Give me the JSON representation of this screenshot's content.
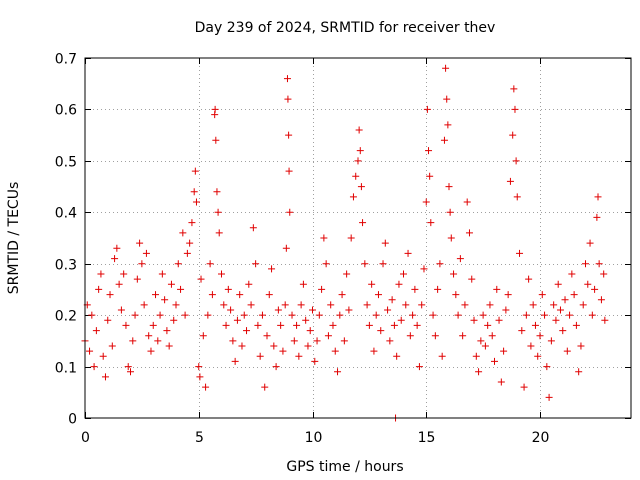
{
  "colors": {
    "points": "#e00000",
    "background": "#ffffff",
    "axes": "#000000"
  },
  "chart_data": {
    "type": "scatter",
    "title": "Day 239 of 2024, SRMTID for receiver thev",
    "xlabel": "GPS time / hours",
    "ylabel": "SRMTID / TECUs",
    "xlim": [
      0,
      24
    ],
    "ylim": [
      0,
      0.7
    ],
    "xticks": [
      0,
      5,
      10,
      15,
      20
    ],
    "xtick_labels": [
      "0",
      "5",
      "10",
      "15",
      "20"
    ],
    "yticks": [
      0,
      0.1,
      0.2,
      0.3,
      0.4,
      0.5,
      0.6,
      0.7
    ],
    "ytick_labels": [
      "0",
      "0.1",
      "0.2",
      "0.3",
      "0.4",
      "0.5",
      "0.6",
      "0.7"
    ],
    "grid": true,
    "marker": "+",
    "series": [
      {
        "name": "SRMTID",
        "points": [
          [
            0.0,
            0.15
          ],
          [
            0.1,
            0.22
          ],
          [
            0.2,
            0.13
          ],
          [
            0.3,
            0.2
          ],
          [
            0.4,
            0.1
          ],
          [
            0.5,
            0.17
          ],
          [
            0.6,
            0.25
          ],
          [
            0.7,
            0.28
          ],
          [
            0.8,
            0.12
          ],
          [
            0.9,
            0.08
          ],
          [
            1.0,
            0.19
          ],
          [
            1.1,
            0.24
          ],
          [
            1.2,
            0.14
          ],
          [
            1.3,
            0.31
          ],
          [
            1.4,
            0.33
          ],
          [
            1.5,
            0.26
          ],
          [
            1.6,
            0.21
          ],
          [
            1.7,
            0.28
          ],
          [
            1.8,
            0.18
          ],
          [
            1.9,
            0.1
          ],
          [
            2.0,
            0.09
          ],
          [
            2.1,
            0.15
          ],
          [
            2.2,
            0.2
          ],
          [
            2.3,
            0.27
          ],
          [
            2.4,
            0.34
          ],
          [
            2.5,
            0.3
          ],
          [
            2.6,
            0.22
          ],
          [
            2.7,
            0.32
          ],
          [
            2.8,
            0.16
          ],
          [
            2.9,
            0.13
          ],
          [
            3.0,
            0.18
          ],
          [
            3.1,
            0.24
          ],
          [
            3.2,
            0.15
          ],
          [
            3.3,
            0.2
          ],
          [
            3.4,
            0.28
          ],
          [
            3.5,
            0.23
          ],
          [
            3.6,
            0.17
          ],
          [
            3.7,
            0.14
          ],
          [
            3.8,
            0.26
          ],
          [
            3.9,
            0.19
          ],
          [
            4.0,
            0.22
          ],
          [
            4.1,
            0.3
          ],
          [
            4.2,
            0.25
          ],
          [
            4.3,
            0.36
          ],
          [
            4.4,
            0.2
          ],
          [
            4.5,
            0.32
          ],
          [
            4.6,
            0.34
          ],
          [
            4.7,
            0.38
          ],
          [
            4.8,
            0.44
          ],
          [
            4.85,
            0.48
          ],
          [
            4.9,
            0.42
          ],
          [
            5.0,
            0.1
          ],
          [
            5.05,
            0.08
          ],
          [
            5.1,
            0.27
          ],
          [
            5.2,
            0.16
          ],
          [
            5.3,
            0.06
          ],
          [
            5.4,
            0.2
          ],
          [
            5.5,
            0.3
          ],
          [
            5.6,
            0.24
          ],
          [
            5.7,
            0.59
          ],
          [
            5.72,
            0.6
          ],
          [
            5.75,
            0.54
          ],
          [
            5.8,
            0.44
          ],
          [
            5.85,
            0.4
          ],
          [
            5.9,
            0.36
          ],
          [
            6.0,
            0.28
          ],
          [
            6.1,
            0.22
          ],
          [
            6.2,
            0.18
          ],
          [
            6.3,
            0.25
          ],
          [
            6.4,
            0.21
          ],
          [
            6.5,
            0.15
          ],
          [
            6.6,
            0.11
          ],
          [
            6.7,
            0.19
          ],
          [
            6.8,
            0.24
          ],
          [
            6.9,
            0.14
          ],
          [
            7.0,
            0.2
          ],
          [
            7.1,
            0.17
          ],
          [
            7.2,
            0.26
          ],
          [
            7.3,
            0.22
          ],
          [
            7.4,
            0.37
          ],
          [
            7.5,
            0.3
          ],
          [
            7.6,
            0.18
          ],
          [
            7.7,
            0.12
          ],
          [
            7.8,
            0.2
          ],
          [
            7.9,
            0.06
          ],
          [
            8.0,
            0.16
          ],
          [
            8.1,
            0.24
          ],
          [
            8.2,
            0.29
          ],
          [
            8.3,
            0.14
          ],
          [
            8.4,
            0.1
          ],
          [
            8.5,
            0.21
          ],
          [
            8.6,
            0.18
          ],
          [
            8.7,
            0.13
          ],
          [
            8.8,
            0.22
          ],
          [
            8.85,
            0.33
          ],
          [
            8.9,
            0.66
          ],
          [
            8.92,
            0.62
          ],
          [
            8.95,
            0.55
          ],
          [
            8.97,
            0.48
          ],
          [
            9.0,
            0.4
          ],
          [
            9.1,
            0.2
          ],
          [
            9.2,
            0.15
          ],
          [
            9.3,
            0.18
          ],
          [
            9.4,
            0.12
          ],
          [
            9.5,
            0.22
          ],
          [
            9.6,
            0.26
          ],
          [
            9.7,
            0.19
          ],
          [
            9.8,
            0.14
          ],
          [
            9.9,
            0.17
          ],
          [
            10.0,
            0.21
          ],
          [
            10.1,
            0.11
          ],
          [
            10.2,
            0.15
          ],
          [
            10.3,
            0.2
          ],
          [
            10.4,
            0.25
          ],
          [
            10.5,
            0.35
          ],
          [
            10.6,
            0.3
          ],
          [
            10.7,
            0.16
          ],
          [
            10.8,
            0.22
          ],
          [
            10.9,
            0.18
          ],
          [
            11.0,
            0.13
          ],
          [
            11.1,
            0.09
          ],
          [
            11.2,
            0.2
          ],
          [
            11.3,
            0.24
          ],
          [
            11.4,
            0.15
          ],
          [
            11.5,
            0.28
          ],
          [
            11.6,
            0.21
          ],
          [
            11.7,
            0.35
          ],
          [
            11.8,
            0.43
          ],
          [
            11.9,
            0.47
          ],
          [
            12.0,
            0.5
          ],
          [
            12.05,
            0.56
          ],
          [
            12.1,
            0.52
          ],
          [
            12.15,
            0.45
          ],
          [
            12.2,
            0.38
          ],
          [
            12.3,
            0.3
          ],
          [
            12.4,
            0.22
          ],
          [
            12.5,
            0.18
          ],
          [
            12.6,
            0.26
          ],
          [
            12.7,
            0.13
          ],
          [
            12.8,
            0.2
          ],
          [
            12.9,
            0.24
          ],
          [
            13.0,
            0.17
          ],
          [
            13.1,
            0.3
          ],
          [
            13.2,
            0.34
          ],
          [
            13.3,
            0.21
          ],
          [
            13.4,
            0.15
          ],
          [
            13.5,
            0.23
          ],
          [
            13.6,
            0.18
          ],
          [
            13.65,
            0.0
          ],
          [
            13.7,
            0.12
          ],
          [
            13.8,
            0.26
          ],
          [
            13.9,
            0.19
          ],
          [
            14.0,
            0.28
          ],
          [
            14.1,
            0.22
          ],
          [
            14.2,
            0.32
          ],
          [
            14.3,
            0.16
          ],
          [
            14.4,
            0.2
          ],
          [
            14.5,
            0.25
          ],
          [
            14.6,
            0.18
          ],
          [
            14.7,
            0.1
          ],
          [
            14.8,
            0.22
          ],
          [
            14.9,
            0.29
          ],
          [
            15.0,
            0.42
          ],
          [
            15.05,
            0.6
          ],
          [
            15.1,
            0.52
          ],
          [
            15.15,
            0.47
          ],
          [
            15.2,
            0.38
          ],
          [
            15.3,
            0.2
          ],
          [
            15.4,
            0.16
          ],
          [
            15.5,
            0.25
          ],
          [
            15.6,
            0.3
          ],
          [
            15.7,
            0.12
          ],
          [
            15.8,
            0.54
          ],
          [
            15.85,
            0.68
          ],
          [
            15.9,
            0.62
          ],
          [
            15.95,
            0.57
          ],
          [
            16.0,
            0.45
          ],
          [
            16.05,
            0.4
          ],
          [
            16.1,
            0.35
          ],
          [
            16.2,
            0.28
          ],
          [
            16.3,
            0.24
          ],
          [
            16.4,
            0.2
          ],
          [
            16.5,
            0.31
          ],
          [
            16.6,
            0.16
          ],
          [
            16.7,
            0.22
          ],
          [
            16.8,
            0.42
          ],
          [
            16.9,
            0.36
          ],
          [
            17.0,
            0.27
          ],
          [
            17.1,
            0.19
          ],
          [
            17.2,
            0.12
          ],
          [
            17.3,
            0.09
          ],
          [
            17.4,
            0.15
          ],
          [
            17.5,
            0.2
          ],
          [
            17.6,
            0.14
          ],
          [
            17.7,
            0.18
          ],
          [
            17.8,
            0.22
          ],
          [
            17.9,
            0.16
          ],
          [
            18.0,
            0.11
          ],
          [
            18.1,
            0.25
          ],
          [
            18.2,
            0.19
          ],
          [
            18.3,
            0.07
          ],
          [
            18.4,
            0.13
          ],
          [
            18.5,
            0.21
          ],
          [
            18.6,
            0.24
          ],
          [
            18.7,
            0.46
          ],
          [
            18.8,
            0.55
          ],
          [
            18.85,
            0.64
          ],
          [
            18.9,
            0.6
          ],
          [
            18.95,
            0.5
          ],
          [
            19.0,
            0.43
          ],
          [
            19.1,
            0.32
          ],
          [
            19.2,
            0.17
          ],
          [
            19.3,
            0.06
          ],
          [
            19.4,
            0.2
          ],
          [
            19.5,
            0.27
          ],
          [
            19.6,
            0.14
          ],
          [
            19.7,
            0.22
          ],
          [
            19.8,
            0.18
          ],
          [
            19.9,
            0.12
          ],
          [
            20.0,
            0.16
          ],
          [
            20.1,
            0.24
          ],
          [
            20.2,
            0.2
          ],
          [
            20.3,
            0.1
          ],
          [
            20.4,
            0.04
          ],
          [
            20.5,
            0.15
          ],
          [
            20.6,
            0.22
          ],
          [
            20.7,
            0.19
          ],
          [
            20.8,
            0.26
          ],
          [
            20.9,
            0.21
          ],
          [
            21.0,
            0.17
          ],
          [
            21.1,
            0.23
          ],
          [
            21.2,
            0.13
          ],
          [
            21.3,
            0.2
          ],
          [
            21.4,
            0.28
          ],
          [
            21.5,
            0.24
          ],
          [
            21.6,
            0.18
          ],
          [
            21.7,
            0.09
          ],
          [
            21.8,
            0.14
          ],
          [
            21.9,
            0.22
          ],
          [
            22.0,
            0.3
          ],
          [
            22.1,
            0.26
          ],
          [
            22.2,
            0.34
          ],
          [
            22.3,
            0.2
          ],
          [
            22.4,
            0.25
          ],
          [
            22.5,
            0.39
          ],
          [
            22.55,
            0.43
          ],
          [
            22.6,
            0.3
          ],
          [
            22.7,
            0.23
          ],
          [
            22.8,
            0.28
          ],
          [
            22.85,
            0.19
          ]
        ]
      }
    ]
  }
}
